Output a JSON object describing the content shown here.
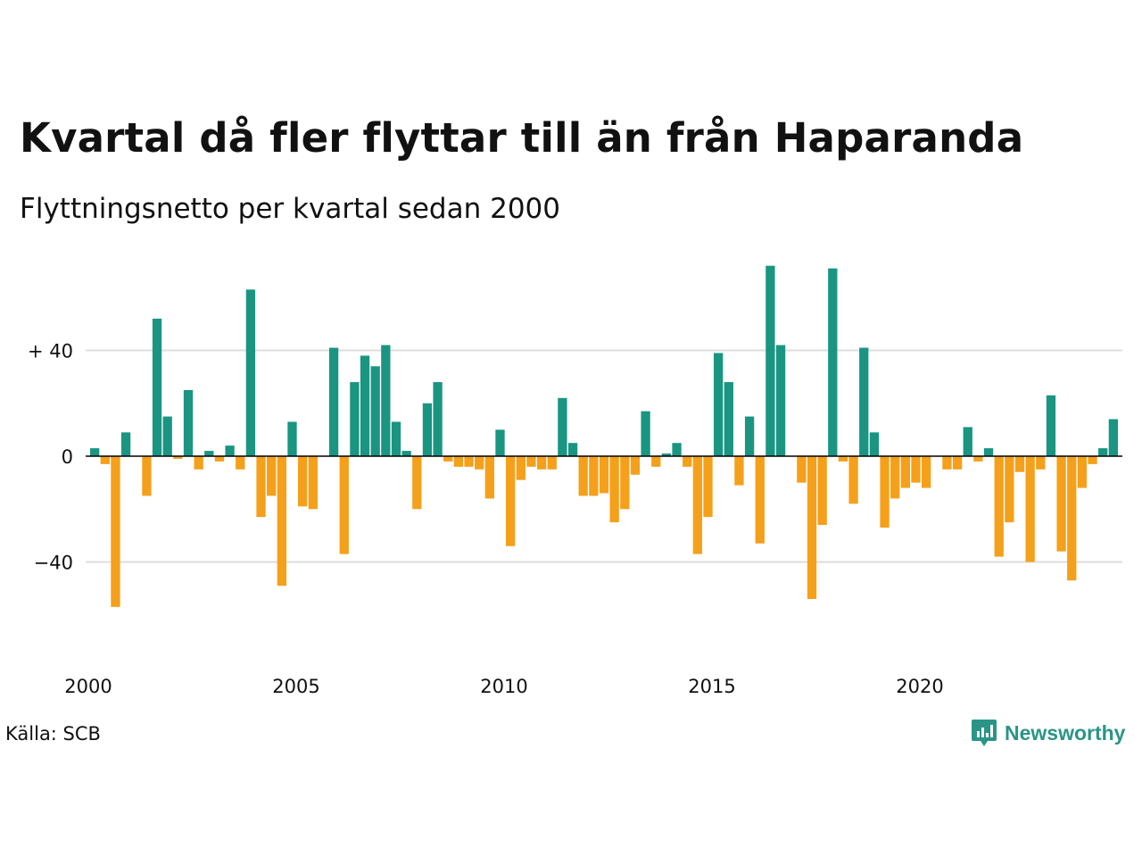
{
  "title": "Kvartal då fler flyttar till än från Haparanda",
  "subtitle": "Flyttningsnetto per kvartal sedan 2000",
  "source": "Källa: SCB",
  "brand": {
    "name": "Newsworthy",
    "icon": "newsworthy-logo-icon",
    "color": "#2a9587"
  },
  "colors": {
    "positive": "#1a9582",
    "negative": "#f5a01a",
    "grid": "#dddddd",
    "zero": "#000000"
  },
  "chart_data": {
    "type": "bar",
    "ylim": [
      -57,
      72
    ],
    "yticks": [
      {
        "value": 40,
        "label": "+ 40"
      },
      {
        "value": 0,
        "label": "0"
      },
      {
        "value": -40,
        "label": "−40"
      }
    ],
    "xticks": [
      "2000",
      "2005",
      "2010",
      "2015",
      "2020"
    ],
    "grid": true,
    "start_year": 2000,
    "values": [
      3,
      -3,
      -57,
      9,
      0,
      -15,
      52,
      15,
      -1,
      25,
      -5,
      2,
      -2,
      4,
      -5,
      63,
      -23,
      -15,
      -49,
      13,
      -19,
      -20,
      0,
      41,
      -37,
      28,
      38,
      34,
      42,
      13,
      2,
      -20,
      20,
      28,
      -2,
      -4,
      -4,
      -5,
      -16,
      10,
      -34,
      -9,
      -4,
      -5,
      -5,
      22,
      5,
      -15,
      -15,
      -14,
      -25,
      -20,
      -7,
      17,
      -4,
      1,
      5,
      -4,
      -37,
      -23,
      39,
      28,
      -11,
      15,
      -33,
      72,
      42,
      0,
      -10,
      -54,
      -26,
      71,
      -2,
      -18,
      41,
      9,
      -27,
      -16,
      -12,
      -10,
      -12,
      0,
      -5,
      -5,
      11,
      -2,
      3,
      -38,
      -25,
      -6,
      -40,
      -5,
      23,
      -36,
      -47,
      -12,
      -3,
      3,
      14
    ]
  }
}
